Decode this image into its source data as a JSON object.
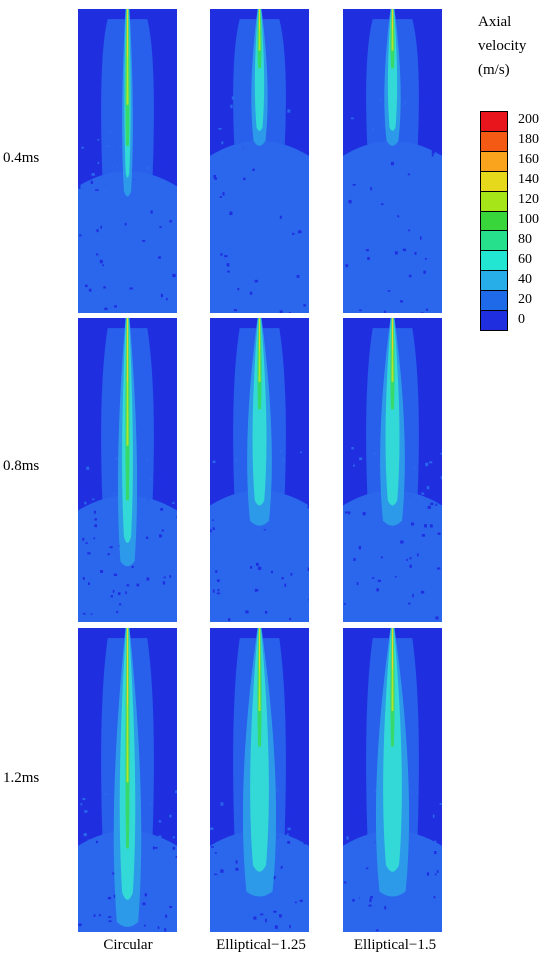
{
  "row_labels": [
    "0.4ms",
    "0.8ms",
    "1.2ms"
  ],
  "column_labels": [
    "Circular",
    "Elliptical−1.25",
    "Elliptical−1.5"
  ],
  "legend": {
    "title_lines": [
      "Axial",
      "velocity",
      "(m/s)"
    ],
    "ticks": [
      "200",
      "180",
      "160",
      "140",
      "120",
      "100",
      "80",
      "60",
      "40",
      "20",
      "0"
    ],
    "colors": [
      "#e8151c",
      "#f55a14",
      "#f9a41c",
      "#e6d81a",
      "#a6e619",
      "#38d63a",
      "#27e08c",
      "#22e6d2",
      "#27aee8",
      "#1f6ae8",
      "#1f2fe0"
    ]
  },
  "colors": {
    "background_zero": "#1f2fe0",
    "ambient_20": "#2a67ec",
    "mid_40": "#2c9ae9",
    "mid_60": "#33d9d6",
    "core_100": "#38d96b",
    "core_140": "#b4e32c",
    "tip_160": "#e9d52a"
  }
}
